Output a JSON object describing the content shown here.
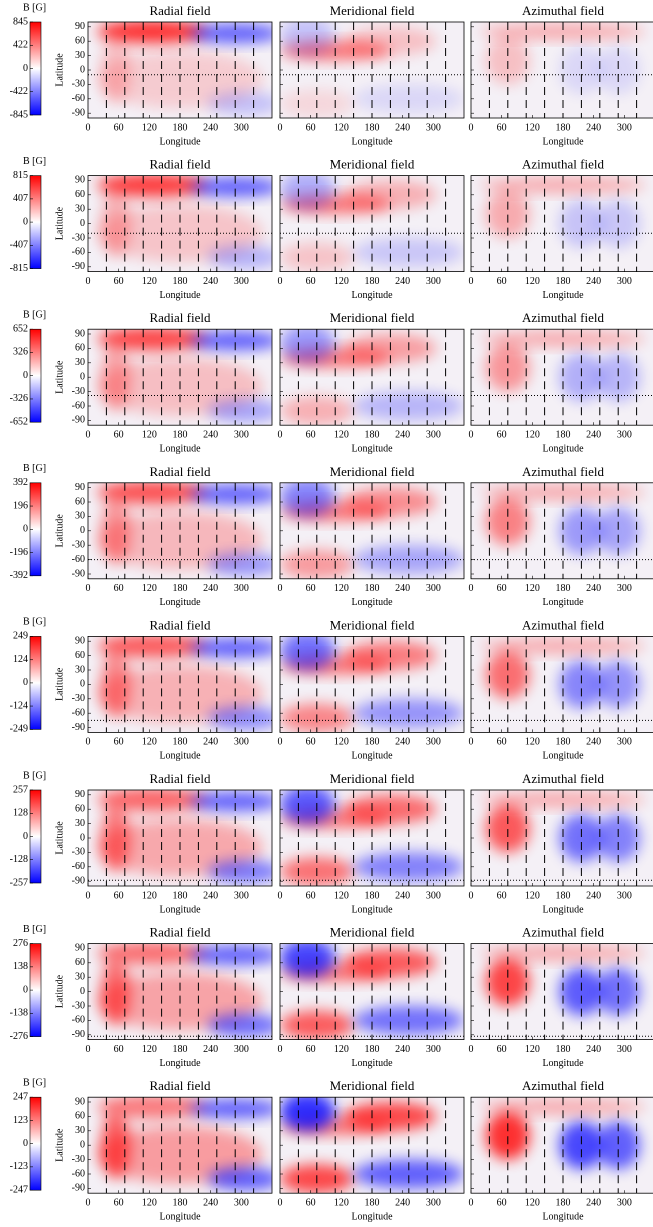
{
  "figure": {
    "type": "heatmap",
    "panel_titles": [
      "Radial field",
      "Meridional field",
      "Azimuthal field"
    ],
    "xlabel": "Longitude",
    "ylabel": "Latitude",
    "xlim": [
      0,
      360
    ],
    "xticks": [
      0,
      60,
      120,
      180,
      240,
      300
    ],
    "ylim": [
      -100,
      100
    ],
    "yticks": [
      90,
      60,
      30,
      0,
      -30,
      -60,
      -90
    ],
    "dashed_longitudes": [
      36,
      72,
      108,
      144,
      180,
      216,
      252,
      288,
      324
    ],
    "colors": {
      "high": "#ff0000",
      "zero": "#ffffff",
      "low": "#0000ff"
    },
    "rows": [
      {
        "colorbar_label": "B [G]",
        "clim": [
          -845,
          845
        ],
        "cticks": [
          845,
          422,
          0,
          -422,
          -845
        ],
        "dotted_latitude": -10
      },
      {
        "colorbar_label": "B [G]",
        "clim": [
          -815,
          815
        ],
        "cticks": [
          815,
          407,
          0,
          -407,
          -815
        ],
        "dotted_latitude": -20
      },
      {
        "colorbar_label": "B [G]",
        "clim": [
          -652,
          652
        ],
        "cticks": [
          652,
          326,
          0,
          -326,
          -652
        ],
        "dotted_latitude": -38
      },
      {
        "colorbar_label": "B [G]",
        "clim": [
          -392,
          392
        ],
        "cticks": [
          392,
          196,
          0,
          -196,
          -392
        ],
        "dotted_latitude": -60
      },
      {
        "colorbar_label": "B [G]",
        "clim": [
          -249,
          249
        ],
        "cticks": [
          249,
          124,
          0,
          -124,
          -249
        ],
        "dotted_latitude": -75
      },
      {
        "colorbar_label": "B [G]",
        "clim": [
          -257,
          257
        ],
        "cticks": [
          257,
          128,
          0,
          -128,
          -257
        ],
        "dotted_latitude": -88
      },
      {
        "colorbar_label": "B [G]",
        "clim": [
          -276,
          276
        ],
        "cticks": [
          276,
          138,
          0,
          -138,
          -276
        ],
        "dotted_latitude": -93
      },
      {
        "colorbar_label": "B [G]",
        "clim": [
          -247,
          247
        ],
        "cticks": [
          247,
          123,
          0,
          -123,
          -247
        ],
        "dotted_latitude": null
      }
    ]
  }
}
